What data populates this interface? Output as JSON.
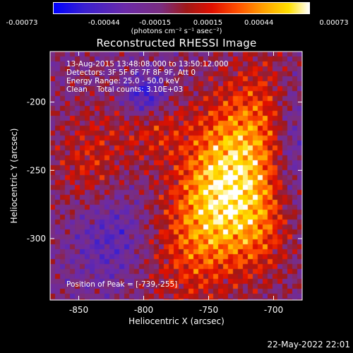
{
  "colorbar": {
    "tick_labels": [
      "-0.00073",
      "-0.00044",
      "-0.00015",
      "0.00015",
      "0.00044",
      "0.00073"
    ],
    "tick_values": [
      -0.00073,
      -0.00044,
      -0.00015,
      0.00015,
      0.00044,
      0.00073
    ],
    "units": "(photons cm⁻² s⁻¹ asec⁻²)"
  },
  "title": "Reconstructed RHESSI Image",
  "info": {
    "line1": "13-Aug-2015 13:48:08.000 to 13:50:12.000",
    "line2": "Detectors: 3F 5F 6F 7F 8F 9F, Att 0",
    "line3": "Energy Range: 25.0 - 50.0 keV",
    "line4": "Clean    Total counts: 3.10E+03",
    "peak": "Position of Peak = [-739,-255]"
  },
  "axes": {
    "xlabel": "Heliocentric X (arcsec)",
    "ylabel": "Heliocentric Y (arcsec)",
    "xlim": [
      -872,
      -678
    ],
    "ylim": [
      -345,
      -163
    ],
    "xticks": [
      -850,
      -800,
      -750,
      -700
    ],
    "yticks": [
      -200,
      -250,
      -300
    ],
    "xtick_labels": [
      "-850",
      "-800",
      "-750",
      "-700"
    ],
    "ytick_labels": [
      "-200",
      "-250",
      "-300"
    ]
  },
  "footer": "22-May-2022 22:01",
  "colors": {
    "min": "#0000ff",
    "mid": "#7030a0",
    "hot": "#ff2000",
    "max": "#ffffff"
  }
}
